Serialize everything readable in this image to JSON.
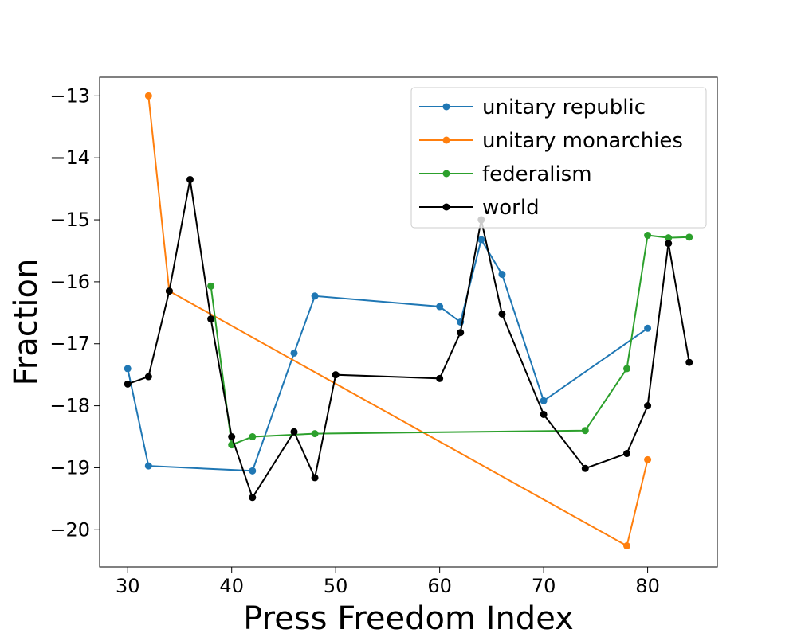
{
  "chart_data": {
    "type": "line",
    "title": "",
    "xlabel": "Press Freedom Index",
    "ylabel": "Fraction",
    "xlim": [
      27.3,
      86.7
    ],
    "ylim": [
      -20.6,
      -12.7
    ],
    "xticks": [
      30,
      40,
      50,
      60,
      70,
      80
    ],
    "yticks": [
      -20,
      -19,
      -18,
      -17,
      -16,
      -15,
      -14,
      -13
    ],
    "xtick_labels": [
      "30",
      "40",
      "50",
      "60",
      "70",
      "80"
    ],
    "ytick_labels": [
      "−20",
      "−19",
      "−18",
      "−17",
      "−16",
      "−15",
      "−14",
      "−13"
    ],
    "grid": false,
    "legend_position": "top-right",
    "series": [
      {
        "name": "unitary republic",
        "color": "#1f77b4",
        "x": [
          30,
          32,
          42,
          46,
          48,
          60,
          62,
          64,
          66,
          70,
          80
        ],
        "y": [
          -17.4,
          -18.97,
          -19.05,
          -17.15,
          -16.23,
          -16.4,
          -16.65,
          -15.32,
          -15.88,
          -17.92,
          -16.75
        ]
      },
      {
        "name": "unitary monarchies",
        "color": "#ff7f0e",
        "x": [
          32,
          34,
          78,
          80
        ],
        "y": [
          -13.0,
          -16.15,
          -20.26,
          -18.87
        ]
      },
      {
        "name": "federalism",
        "color": "#2ca02c",
        "x": [
          38,
          40,
          42,
          48,
          74,
          78,
          80,
          82,
          84
        ],
        "y": [
          -16.07,
          -18.63,
          -18.5,
          -18.45,
          -18.4,
          -17.4,
          -15.25,
          -15.29,
          -15.28
        ]
      },
      {
        "name": "world",
        "color": "#000000",
        "x": [
          30,
          32,
          34,
          36,
          38,
          40,
          42,
          46,
          48,
          50,
          60,
          62,
          64,
          66,
          70,
          74,
          78,
          80,
          82,
          84
        ],
        "y": [
          -17.65,
          -17.53,
          -16.15,
          -14.35,
          -16.6,
          -18.5,
          -19.48,
          -18.42,
          -19.16,
          -17.5,
          -17.56,
          -16.82,
          -15.0,
          -16.52,
          -18.14,
          -19.01,
          -18.77,
          -18.0,
          -15.38,
          -17.3
        ]
      }
    ]
  }
}
